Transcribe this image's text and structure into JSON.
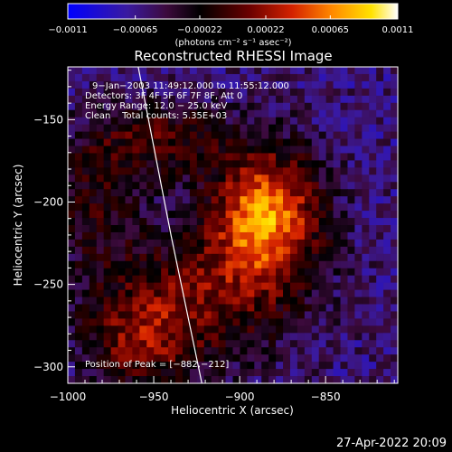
{
  "chart_data": {
    "type": "heatmap",
    "title": "Reconstructed RHESSI Image",
    "xlabel": "Heliocentric X (arcsec)",
    "ylabel": "Heliocentric Y (arcsec)",
    "xlim": [
      -1000,
      -808
    ],
    "ylim": [
      -310,
      -118
    ],
    "x_ticks": [
      -1000,
      -950,
      -900,
      -850
    ],
    "y_ticks": [
      -300,
      -250,
      -200,
      -150
    ],
    "x_tick_labels": [
      "−1000",
      "−950",
      "−900",
      "−850"
    ],
    "y_tick_labels": [
      "−300",
      "−250",
      "−200",
      "−150"
    ],
    "colorbar": {
      "min": -0.0011,
      "max": 0.0011,
      "tick_values": [
        -0.0011,
        -0.00065,
        -0.00022,
        0.00022,
        0.00065,
        0.0011
      ],
      "tick_labels": [
        "−0.0011",
        "−0.00065",
        "−0.00022",
        "0.00022",
        "0.00065",
        "0.0011"
      ],
      "unit_label": "(photons cm⁻² s⁻¹ asec⁻²)"
    },
    "peak": {
      "x": -882,
      "y": -212
    },
    "annotations": [
      "9−Jan−2003 11:49:12.000 to 11:55:12.000",
      "Detectors: 3F 4F 5F 6F 7F 8F, Att 0",
      "Energy Range: 12.0 − 25.0 keV",
      "Clean    Total counts: 5.35E+03"
    ],
    "peak_label": "Position of Peak = [−882,−212]",
    "limb": [
      [
        -959,
        -118
      ],
      [
        -940,
        -220
      ],
      [
        -922,
        -310
      ]
    ],
    "emission_sources": [
      {
        "x": -885,
        "y": -208,
        "amp": 0.00125,
        "sx": 22,
        "sy": 28
      },
      {
        "x": -948,
        "y": -162,
        "amp": 0.00055,
        "sx": 28,
        "sy": 16
      },
      {
        "x": -925,
        "y": -258,
        "amp": 0.0006,
        "sx": 40,
        "sy": 28
      },
      {
        "x": -958,
        "y": -285,
        "amp": 0.00055,
        "sx": 22,
        "sy": 20
      },
      {
        "x": -985,
        "y": -200,
        "amp": 0.0004,
        "sx": 18,
        "sy": 28
      }
    ],
    "background_level": -0.00058
  },
  "footer": {
    "timestamp": "27-Apr-2022 20:09"
  }
}
